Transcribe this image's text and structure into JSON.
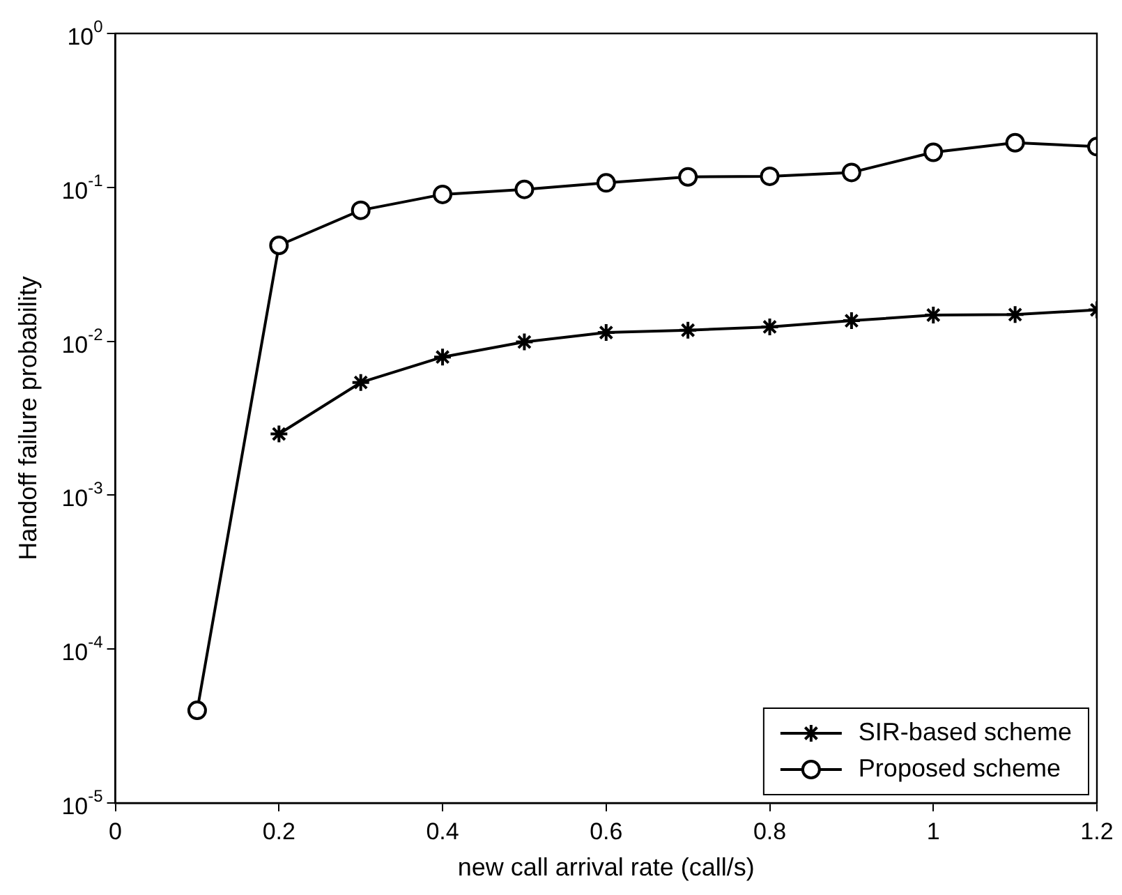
{
  "chart_data": {
    "type": "line",
    "xlabel": "new call arrival rate (call/s)",
    "ylabel": "Handoff failure probability",
    "xlim": [
      0,
      1.2
    ],
    "xticks": [
      0,
      0.2,
      0.4,
      0.6,
      0.8,
      1,
      1.2
    ],
    "ylim": [
      1e-05,
      1
    ],
    "log": "y",
    "yticks": [
      {
        "value": 1e-05,
        "label": "10$^{-5}$"
      },
      {
        "value": 0.0001,
        "label": "10$^{-4}$"
      },
      {
        "value": 0.001,
        "label": "10$^{-3}$"
      },
      {
        "value": 0.01,
        "label": "10$^{-2}$"
      },
      {
        "value": 0.1,
        "label": "10$^{-1}$"
      },
      {
        "value": 1,
        "label": "10$^{0}$"
      }
    ],
    "grid": false,
    "legend": "bottom right",
    "line_style": "solid",
    "series": [
      {
        "name": "SIR-based scheme",
        "color": "#000000",
        "marker": "cross",
        "x": [
          0.2,
          0.3,
          0.4,
          0.5,
          0.6,
          0.7,
          0.8,
          0.9,
          1.0,
          1.1,
          1.2
        ],
        "values": [
          0.0025,
          0.0054,
          0.0079,
          0.0099,
          0.0114,
          0.0118,
          0.0124,
          0.0136,
          0.0148,
          0.0149,
          0.016
        ]
      },
      {
        "name": "Proposed scheme",
        "color": "#000000",
        "marker": "circle",
        "x": [
          0.1,
          0.2,
          0.3,
          0.4,
          0.5,
          0.6,
          0.7,
          0.8,
          0.9,
          1.0,
          1.1,
          1.2
        ],
        "values": [
          4e-05,
          0.042,
          0.071,
          0.09,
          0.097,
          0.107,
          0.117,
          0.118,
          0.125,
          0.169,
          0.195,
          0.184
        ]
      }
    ]
  }
}
